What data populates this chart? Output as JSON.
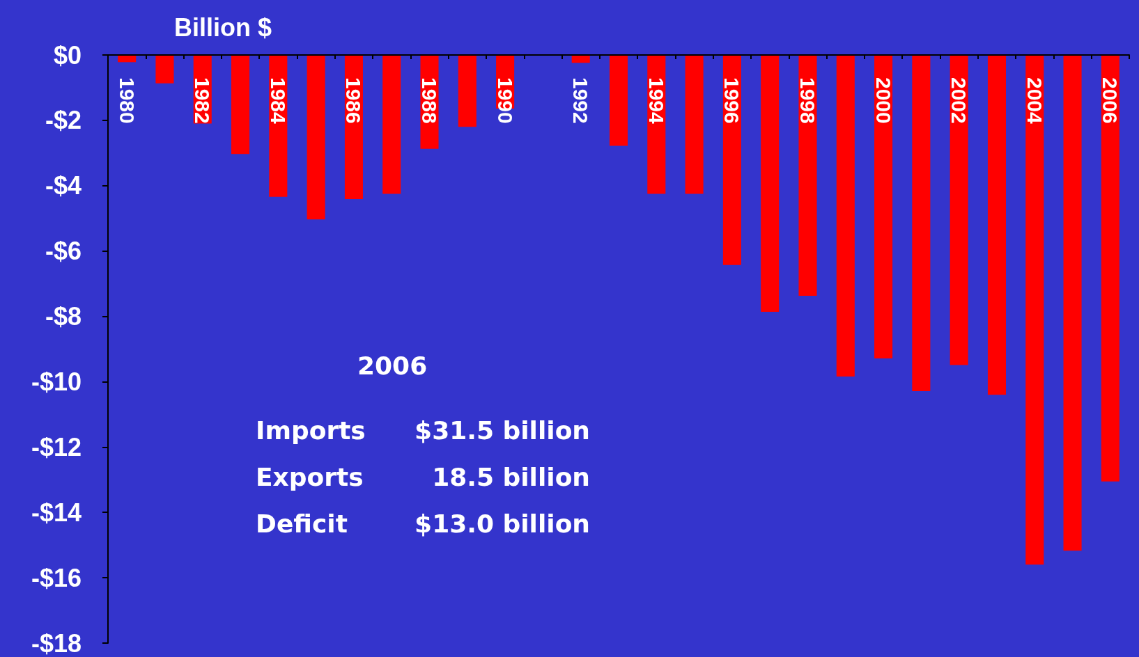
{
  "chart_data": {
    "type": "bar",
    "ylabel": "Billion $",
    "categories": [
      "1980",
      null,
      "1982",
      null,
      "1984",
      null,
      "1986",
      null,
      "1988",
      null,
      "1990",
      null,
      "1992",
      null,
      "1994",
      null,
      "1996",
      null,
      "1998",
      null,
      "2000",
      null,
      "2002",
      null,
      "2004",
      null,
      "2006"
    ],
    "values": [
      -0.22,
      -0.87,
      -2.1,
      -3.03,
      -4.34,
      -5.03,
      -4.41,
      -4.25,
      -2.87,
      -2.2,
      -1.64,
      0,
      -0.24,
      -2.78,
      -4.25,
      -4.25,
      -6.43,
      -7.86,
      -7.37,
      -9.84,
      -9.29,
      -10.29,
      -9.49,
      -10.4,
      -15.6,
      -15.17,
      -13.05
    ],
    "color": "#ff0000",
    "ylim": [
      -18,
      0
    ],
    "yticks": [
      {
        "value": 0,
        "label": "$0"
      },
      {
        "value": -2,
        "label": "-$2"
      },
      {
        "value": -4,
        "label": "-$4"
      },
      {
        "value": -6,
        "label": "-$6"
      },
      {
        "value": -8,
        "label": "-$8"
      },
      {
        "value": -10,
        "label": "-$10"
      },
      {
        "value": -12,
        "label": "-$12"
      },
      {
        "value": -14,
        "label": "-$14"
      },
      {
        "value": -16,
        "label": "-$16"
      },
      {
        "value": -18,
        "label": "-$18"
      }
    ],
    "grid": false,
    "annotations": [
      "2006",
      "Imports",
      "$31.5 billion",
      "Exports",
      "18.5 billion",
      "Deficit",
      "$13.0 billion"
    ]
  }
}
